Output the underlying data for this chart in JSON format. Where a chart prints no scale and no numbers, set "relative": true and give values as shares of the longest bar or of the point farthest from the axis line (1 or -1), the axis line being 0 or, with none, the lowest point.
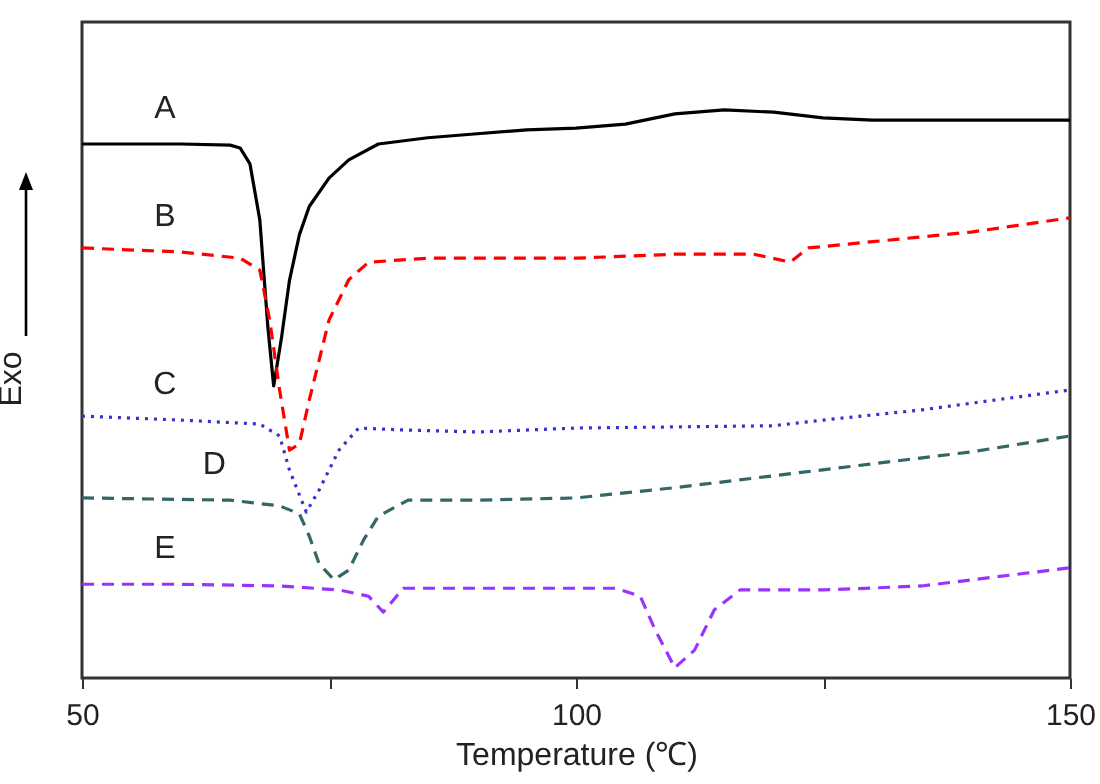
{
  "chart_data": {
    "type": "line",
    "relative": true,
    "xlabel": "Temperature (℃)",
    "ylabel": "Exo",
    "xlim": [
      50,
      150
    ],
    "xticks": [
      50,
      {
        "value": 75,
        "label": null
      },
      100,
      {
        "value": 125,
        "label": null
      },
      150
    ],
    "tick_labels": "x",
    "grid": false,
    "series": [
      {
        "name": "A",
        "color": "#000000",
        "line_style": "solid",
        "x": [
          50,
          60,
          65,
          66,
          67,
          68,
          68.8,
          69.4,
          70.2,
          71,
          72,
          73,
          75,
          77,
          80,
          85,
          90,
          95,
          100,
          105,
          110,
          115,
          120,
          125,
          130,
          140,
          150
        ],
        "values": [
          0.94,
          0.94,
          0.938,
          0.933,
          0.905,
          0.806,
          0.62,
          0.514,
          0.6,
          0.7,
          0.78,
          0.83,
          0.88,
          0.912,
          0.94,
          0.951,
          0.958,
          0.965,
          0.968,
          0.975,
          0.993,
          1,
          0.996,
          0.986,
          0.982,
          0.982,
          0.982
        ]
      },
      {
        "name": "B",
        "color": "#ff0000",
        "line_style": "dashed",
        "x": [
          50,
          60,
          66,
          68,
          69,
          70,
          71,
          72,
          73,
          75,
          77,
          79,
          85,
          100,
          110,
          118,
          121.7,
          123.5,
          130,
          140,
          150
        ],
        "values": [
          0.757,
          0.75,
          0.739,
          0.718,
          0.63,
          0.507,
          0.401,
          0.412,
          0.489,
          0.63,
          0.701,
          0.732,
          0.739,
          0.739,
          0.746,
          0.746,
          0.732,
          0.757,
          0.768,
          0.785,
          0.81
        ]
      },
      {
        "name": "C",
        "color": "#3333cc",
        "line_style": "dotted",
        "x": [
          50,
          60,
          68,
          70,
          71,
          72.7,
          74,
          76,
          78,
          82,
          90,
          100,
          120,
          125,
          135,
          150
        ],
        "values": [
          0.461,
          0.454,
          0.447,
          0.426,
          0.366,
          0.292,
          0.331,
          0.401,
          0.44,
          0.437,
          0.433,
          0.44,
          0.444,
          0.454,
          0.472,
          0.507
        ]
      },
      {
        "name": "D",
        "color": "#336666",
        "line_style": "dashed",
        "x": [
          50,
          65,
          70,
          72,
          73,
          74,
          75.5,
          77,
          78.5,
          80,
          83,
          90,
          100,
          110,
          120,
          130,
          140,
          150
        ],
        "values": [
          0.317,
          0.313,
          0.303,
          0.289,
          0.25,
          0.201,
          0.173,
          0.19,
          0.243,
          0.285,
          0.313,
          0.313,
          0.317,
          0.335,
          0.356,
          0.377,
          0.398,
          0.426
        ]
      },
      {
        "name": "E",
        "color": "#9933ff",
        "line_style": "dashed",
        "x": [
          50,
          60,
          70,
          76,
          79,
          80.5,
          81.5,
          82.5,
          95,
          104,
          106.5,
          108,
          110,
          112,
          114,
          116.6,
          125,
          135,
          150
        ],
        "values": [
          0.165,
          0.165,
          0.162,
          0.155,
          0.144,
          0.116,
          0.137,
          0.158,
          0.158,
          0.158,
          0.144,
          0.085,
          0.018,
          0.049,
          0.12,
          0.155,
          0.155,
          0.162,
          0.194
        ]
      }
    ]
  }
}
